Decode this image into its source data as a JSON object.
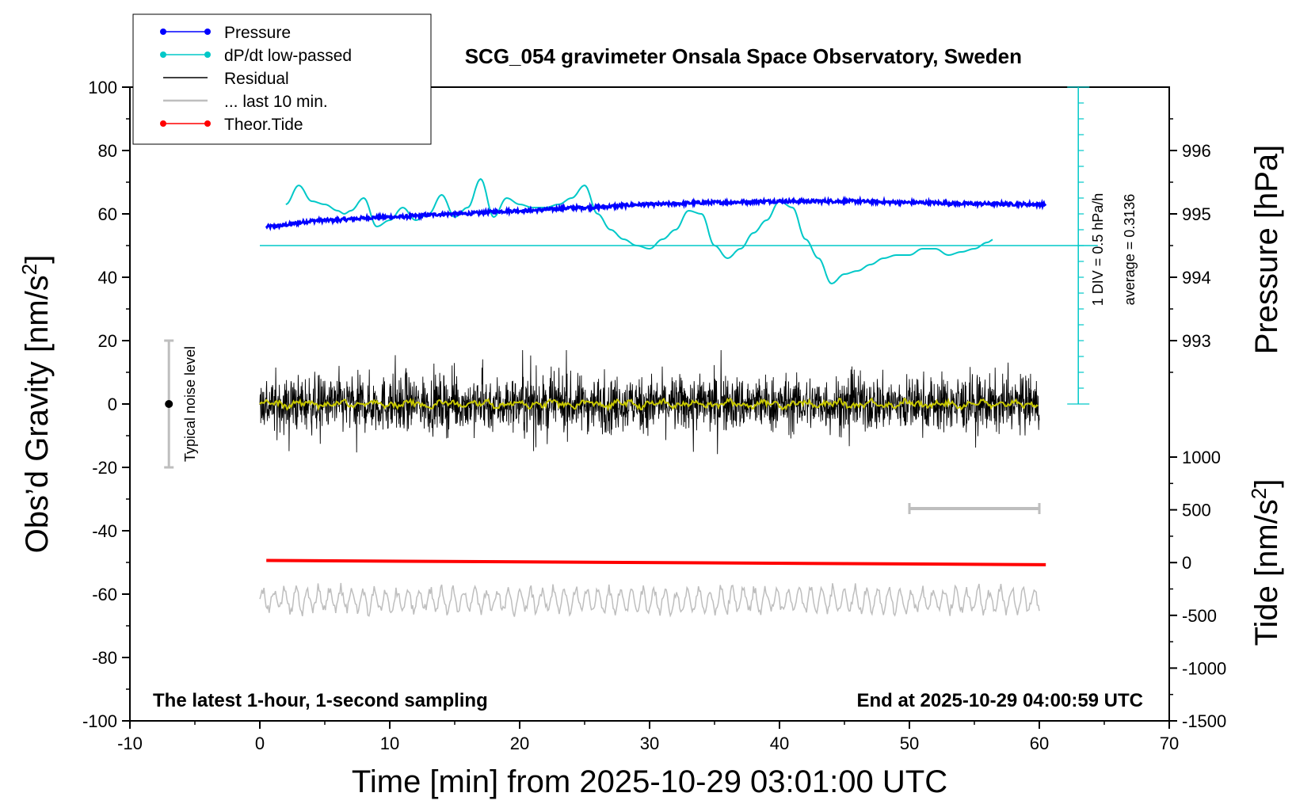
{
  "chart_data": {
    "type": "line",
    "title": "SCG_054 gravimeter Onsala Space Observatory, Sweden",
    "xlabel": "Time [min] from 2025-10-29 03:01:00 UTC",
    "ylabel_left": "Obs’d Gravity [nm/s",
    "ylabel_left_sup": "2",
    "ylabel_left_end": "]",
    "ylabel_right_pressure": "Pressure [hPa]",
    "ylabel_right_tide": "Tide [nm/s",
    "ylabel_right_tide_sup": "2",
    "ylabel_right_tide_end": "]",
    "xlim": [
      -10,
      70
    ],
    "ylim": [
      -100,
      100
    ],
    "x_ticks": [
      "-10",
      "0",
      "10",
      "20",
      "30",
      "40",
      "50",
      "60",
      "70"
    ],
    "y_ticks": [
      "-100",
      "-80",
      "-60",
      "-40",
      "-20",
      "0",
      "20",
      "40",
      "60",
      "80",
      "100"
    ],
    "pressure_ticks": [
      "993",
      "994",
      "995",
      "996"
    ],
    "tide_ticks": [
      "-1500",
      "-1000",
      "-500",
      "0",
      "500",
      "1000"
    ],
    "legend": [
      {
        "label": "Pressure",
        "color": "#0000ff",
        "marker": true
      },
      {
        "label": "dP/dt low-passed",
        "color": "#00c8c8",
        "marker": true
      },
      {
        "label": "Residual",
        "color": "#000000",
        "marker": false
      },
      {
        "label": "... last 10 min.",
        "color": "#bebebe",
        "marker": false
      },
      {
        "label": "Theor.Tide",
        "color": "#ff0000",
        "marker": true
      }
    ],
    "annotations": {
      "bottom_left": "The latest 1-hour, 1-second sampling",
      "bottom_right": "End at 2025-10-29 04:00:59 UTC",
      "noise_label": "Typical noise level",
      "div_label": "1 DIV = 0.5 hPa/h",
      "average_label": "average = 0.3136"
    },
    "series": [
      {
        "name": "Pressure",
        "unit": "hPa",
        "color": "#0000ff",
        "x": [
          0.5,
          5,
          10,
          15,
          20,
          25,
          30,
          35,
          40,
          45,
          50,
          55,
          60.5
        ],
        "values": [
          994.8,
          994.9,
          994.95,
          995.0,
          995.05,
          995.1,
          995.15,
          995.18,
          995.2,
          995.2,
          995.18,
          995.16,
          995.15
        ]
      },
      {
        "name": "dP/dt low-passed",
        "unit": "nm/s2 axis",
        "color": "#00c8c8",
        "x": [
          2,
          3,
          4,
          5,
          6,
          6.5,
          7,
          8,
          9,
          10,
          11,
          12,
          13,
          14,
          15,
          16,
          17,
          18,
          19,
          20,
          21,
          22,
          23,
          24,
          25,
          26,
          27,
          28,
          29,
          30,
          31,
          32,
          33,
          34,
          35,
          36,
          37,
          38,
          39,
          40,
          41,
          42,
          43,
          44,
          45,
          46,
          47,
          48,
          49,
          50,
          51,
          52,
          53,
          54,
          55,
          56,
          56.5
        ],
        "values": [
          63,
          69,
          64,
          63,
          61,
          60,
          61,
          65,
          56,
          58,
          62,
          58,
          60,
          66,
          59,
          62,
          71,
          59,
          65,
          63,
          62,
          62,
          63,
          65,
          69,
          60,
          55,
          52,
          50,
          49,
          52,
          55,
          61,
          60,
          50,
          46,
          49,
          54,
          58,
          64,
          62,
          52,
          46,
          38,
          41,
          42,
          44,
          46,
          47,
          47,
          49,
          49,
          47,
          48,
          49,
          51,
          52
        ]
      },
      {
        "name": "Residual",
        "unit": "nm/s2",
        "color": "#000000",
        "x_range": [
          0,
          60
        ],
        "amplitude": 8,
        "min": -19,
        "max": 17
      },
      {
        "name": "Residual low-passed",
        "unit": "nm/s2",
        "color": "#c8c800",
        "x_range": [
          0,
          60
        ],
        "amplitude": 1.5
      },
      {
        "name": "... last 10 min.",
        "unit": "nm/s2",
        "color": "#bebebe",
        "x_range": [
          0,
          60
        ],
        "baseline": -62,
        "amplitude": 5
      },
      {
        "name": "Theor.Tide",
        "unit": "nm/s2 (tide axis)",
        "color": "#ff0000",
        "x": [
          0.5,
          60.5
        ],
        "values": [
          20,
          -20
        ]
      }
    ],
    "average_line_y": 50,
    "scale_bar": {
      "x_start": 50,
      "x_end": 60,
      "y": -33
    },
    "noise_bar": {
      "x": -7,
      "y_low": -20,
      "y_high": 20,
      "center": 0
    },
    "div_scale": {
      "x": 63,
      "y_low": 0,
      "y_high": 100,
      "divisions": 20
    }
  }
}
